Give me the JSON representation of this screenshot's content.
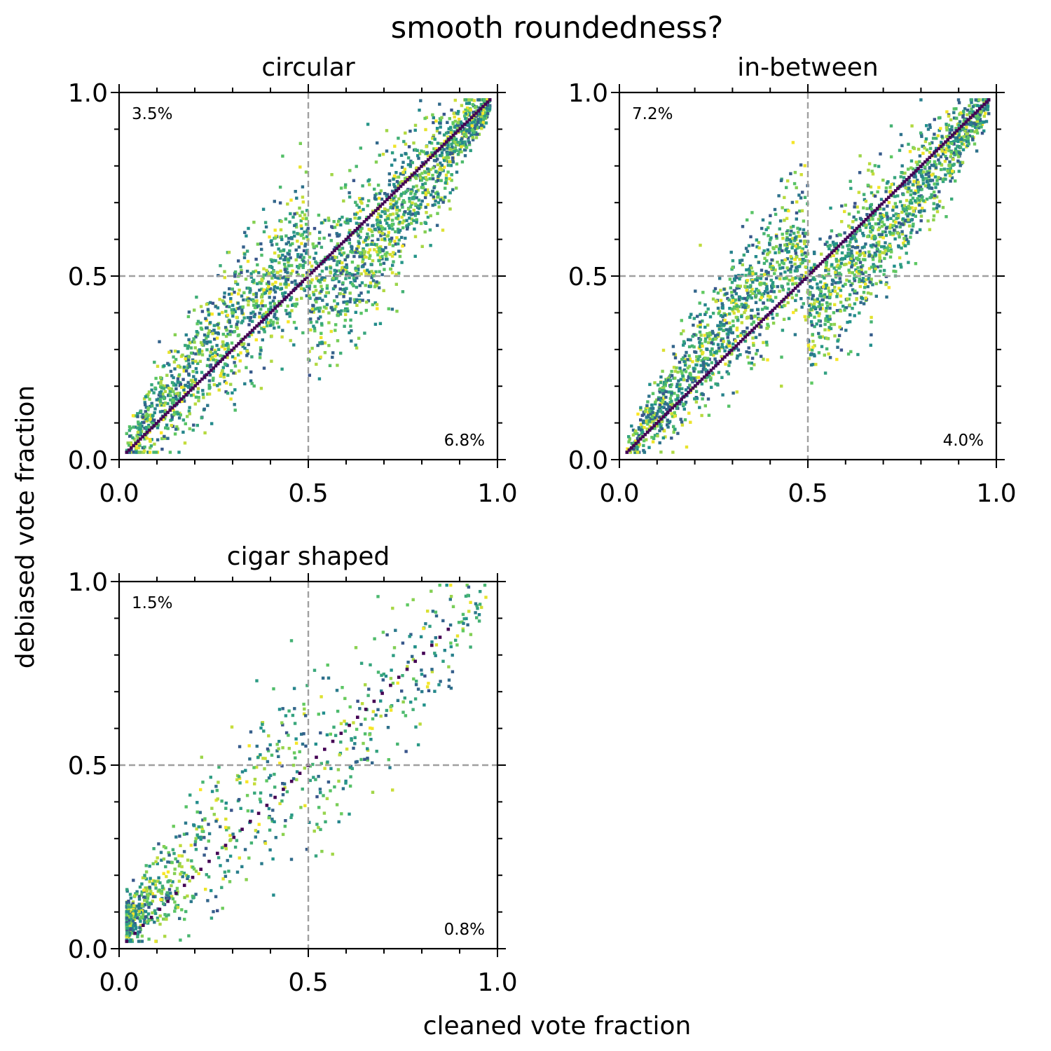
{
  "figure": {
    "title": "smooth roundedness?",
    "xlabel": "cleaned vote fraction",
    "ylabel": "debiased vote fraction"
  },
  "chart_data": [
    {
      "type": "scatter",
      "title": "circular",
      "xlim": [
        0.0,
        1.0
      ],
      "ylim": [
        0.0,
        1.0
      ],
      "x_ticks": [
        "0.0",
        "0.5",
        "1.0"
      ],
      "y_ticks": [
        "0.0",
        "0.5",
        "1.0"
      ],
      "reference_lines": {
        "x": 0.5,
        "y": 0.5,
        "style": "dashed",
        "color": "#a0a0a0"
      },
      "annotations": {
        "upper_left": "3.5%",
        "lower_right": "6.8%"
      },
      "colormap": "viridis",
      "points_estimated": {
        "seed": 11,
        "count": 2400,
        "distribution": "dense cloud along the diagonal, skewed above the diagonal for x < 0.5 and below it for x > 0.5",
        "diagonal_ribbon": "dark purple points lie exactly on y = x from 0.02 to 0.98",
        "x_range": [
          0.02,
          0.98
        ],
        "y_range": [
          0.02,
          0.98
        ],
        "spread": 0.1,
        "bias_amplitude": 0.08,
        "bias_shape": "sinusoidal"
      }
    },
    {
      "type": "scatter",
      "title": "in-between",
      "xlim": [
        0.0,
        1.0
      ],
      "ylim": [
        0.0,
        1.0
      ],
      "x_ticks": [
        "0.0",
        "0.5",
        "1.0"
      ],
      "y_ticks": [
        "0.0",
        "0.5",
        "1.0"
      ],
      "reference_lines": {
        "x": 0.5,
        "y": 0.5,
        "style": "dashed",
        "color": "#a0a0a0"
      },
      "annotations": {
        "upper_left": "7.2%",
        "lower_right": "4.0%"
      },
      "colormap": "viridis",
      "points_estimated": {
        "seed": 23,
        "count": 2400,
        "distribution": "dense cloud along the diagonal, shifted above the diagonal for x < 0.6",
        "diagonal_ribbon": "dark purple points lie exactly on y = x from 0.02 to 0.98",
        "x_range": [
          0.02,
          0.98
        ],
        "y_range": [
          0.02,
          0.98
        ],
        "spread": 0.09,
        "bias_amplitude": 0.1,
        "bias_shape": "sinusoidal"
      }
    },
    {
      "type": "scatter",
      "title": "cigar shaped",
      "xlim": [
        0.0,
        1.0
      ],
      "ylim": [
        0.0,
        1.0
      ],
      "x_ticks": [
        "0.0",
        "0.5",
        "1.0"
      ],
      "y_ticks": [
        "0.0",
        "0.5",
        "1.0"
      ],
      "reference_lines": {
        "x": 0.5,
        "y": 0.5,
        "style": "dashed",
        "color": "#a0a0a0"
      },
      "annotations": {
        "upper_left": "1.5%",
        "lower_right": "0.8%"
      },
      "colormap": "viridis",
      "points_estimated": {
        "seed": 37,
        "count": 900,
        "distribution": "concentrated near the origin (x < 0.3), sparse scatter elsewhere, many points above the diagonal",
        "diagonal_ribbon": "dark purple points on y = x, sparse above 0.4, up to 0.87",
        "x_range": [
          0.02,
          0.97
        ],
        "y_range": [
          0.02,
          0.99
        ],
        "spread": 0.12,
        "bias_amplitude": 0.05,
        "bias_shape": "skewed-low"
      }
    }
  ]
}
